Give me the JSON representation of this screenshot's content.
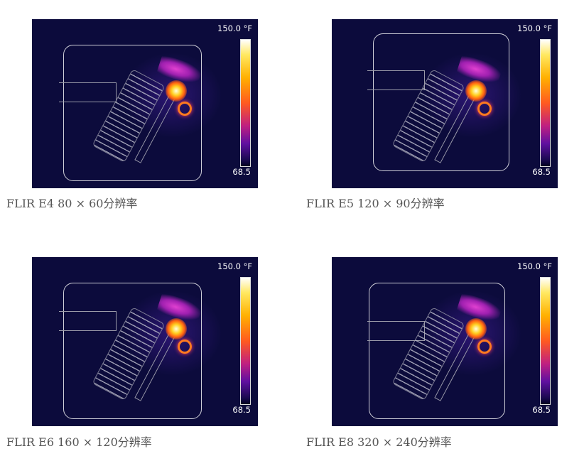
{
  "panels": [
    {
      "caption": "FLIR E4 80 × 60分辨率",
      "scale_max": "150.0 °F",
      "scale_min": "68.5"
    },
    {
      "caption": "FLIR E5 120 × 90分辨率",
      "scale_max": "150.0 °F",
      "scale_min": "68.5"
    },
    {
      "caption": "FLIR E6 160 × 120分辨率",
      "scale_max": "150.0 °F",
      "scale_min": "68.5"
    },
    {
      "caption": "FLIR E8 320 × 240分辨率",
      "scale_max": "150.0 °F",
      "scale_min": "68.5"
    }
  ],
  "colors": {
    "background": "#0c0b3c",
    "caption": "#555555"
  }
}
